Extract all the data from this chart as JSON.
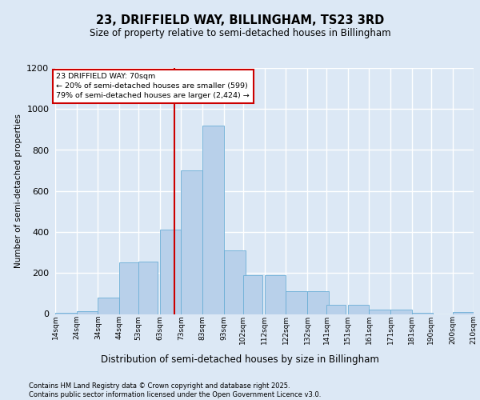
{
  "title_line1": "23, DRIFFIELD WAY, BILLINGHAM, TS23 3RD",
  "title_line2": "Size of property relative to semi-detached houses in Billingham",
  "xlabel": "Distribution of semi-detached houses by size in Billingham",
  "ylabel": "Number of semi-detached properties",
  "footer_line1": "Contains HM Land Registry data © Crown copyright and database right 2025.",
  "footer_line2": "Contains public sector information licensed under the Open Government Licence v3.0.",
  "annotation_title": "23 DRIFFIELD WAY: 70sqm",
  "annotation_line1": "← 20% of semi-detached houses are smaller (599)",
  "annotation_line2": "79% of semi-detached houses are larger (2,424) →",
  "property_size": 70,
  "bar_left_edges": [
    14,
    24,
    34,
    44,
    53,
    63,
    73,
    83,
    93,
    102,
    112,
    122,
    132,
    141,
    151,
    161,
    171,
    181,
    190,
    200
  ],
  "bar_widths": [
    10,
    10,
    10,
    10,
    9,
    10,
    10,
    10,
    10,
    9,
    10,
    10,
    10,
    9,
    10,
    10,
    10,
    10,
    9,
    10
  ],
  "bar_heights": [
    5,
    15,
    80,
    250,
    255,
    410,
    700,
    920,
    310,
    190,
    190,
    110,
    110,
    45,
    45,
    20,
    20,
    5,
    0,
    10
  ],
  "bar_color": "#b8d0ea",
  "bar_edge_color": "#6baed6",
  "vline_color": "#cc0000",
  "vline_x": 70,
  "ylim": [
    0,
    1200
  ],
  "yticks": [
    0,
    200,
    400,
    600,
    800,
    1000,
    1200
  ],
  "bg_color": "#dce8f5",
  "plot_bg_color": "#dce8f5",
  "grid_color": "#ffffff",
  "annotation_box_edge": "#cc0000",
  "annotation_box_face": "#ffffff",
  "tick_labels": [
    "14sqm",
    "24sqm",
    "34sqm",
    "44sqm",
    "53sqm",
    "63sqm",
    "73sqm",
    "83sqm",
    "93sqm",
    "102sqm",
    "112sqm",
    "122sqm",
    "132sqm",
    "141sqm",
    "151sqm",
    "161sqm",
    "171sqm",
    "181sqm",
    "190sqm",
    "200sqm",
    "210sqm"
  ],
  "title1_fontsize": 10.5,
  "title2_fontsize": 8.5,
  "ylabel_fontsize": 7.5,
  "xlabel_fontsize": 8.5,
  "ytick_fontsize": 8,
  "xtick_fontsize": 6.5,
  "footer_fontsize": 6.0
}
